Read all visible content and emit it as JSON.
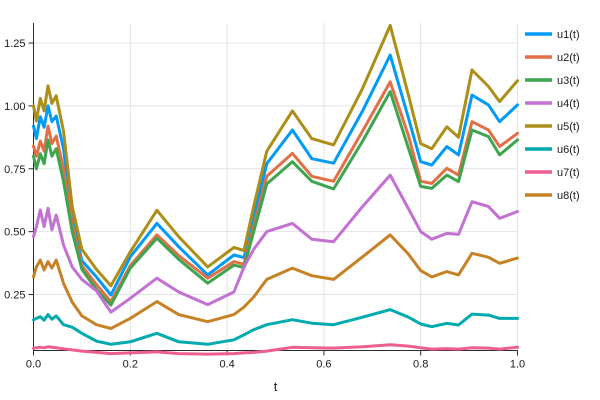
{
  "chart_data": {
    "type": "line",
    "title": "",
    "xlabel": "t",
    "ylabel": "",
    "xlim": [
      0.0,
      1.0
    ],
    "ylim": [
      0.03,
      1.33
    ],
    "grid": true,
    "legend_position": "outer-right-top",
    "x_tick_labels": [
      "0.0",
      "0.2",
      "0.4",
      "0.6",
      "0.8",
      "1.0"
    ],
    "x_tick_values": [
      0.0,
      0.2,
      0.4,
      0.6,
      0.8,
      1.0
    ],
    "y_tick_labels": [
      "0.25",
      "0.50",
      "0.75",
      "1.00",
      "1.25"
    ],
    "y_tick_values": [
      0.25,
      0.5,
      0.75,
      1.0,
      1.25
    ],
    "colors": {
      "grid": "#e3e3e3",
      "axis": "#2a2a2a",
      "text": "#1b1b1b",
      "background": "#ffffff"
    },
    "x": [
      0,
      0.006,
      0.014,
      0.022,
      0.03,
      0.038,
      0.047,
      0.062,
      0.08,
      0.1,
      0.13,
      0.16,
      0.2,
      0.255,
      0.3,
      0.36,
      0.414,
      0.435,
      0.455,
      0.482,
      0.535,
      0.575,
      0.62,
      0.68,
      0.737,
      0.775,
      0.8,
      0.823,
      0.854,
      0.878,
      0.906,
      0.94,
      0.963,
      1.0
    ],
    "series": [
      {
        "name": "u1(t)",
        "color": "#009AF9",
        "values": [
          0.92,
          0.87,
          0.957,
          0.915,
          1.0,
          0.937,
          0.96,
          0.83,
          0.55,
          0.385,
          0.32,
          0.248,
          0.4,
          0.533,
          0.44,
          0.328,
          0.407,
          0.397,
          0.56,
          0.77,
          0.904,
          0.79,
          0.772,
          0.98,
          1.202,
          0.95,
          0.778,
          0.765,
          0.838,
          0.805,
          1.043,
          1.004,
          0.937,
          1.004
        ]
      },
      {
        "name": "u2(t)",
        "color": "#E36F47",
        "values": [
          0.84,
          0.8,
          0.86,
          0.82,
          0.92,
          0.85,
          0.88,
          0.75,
          0.53,
          0.365,
          0.29,
          0.222,
          0.365,
          0.487,
          0.405,
          0.315,
          0.381,
          0.37,
          0.52,
          0.72,
          0.811,
          0.72,
          0.7,
          0.9,
          1.096,
          0.88,
          0.7,
          0.692,
          0.752,
          0.725,
          0.937,
          0.904,
          0.838,
          0.891
        ]
      },
      {
        "name": "u3(t)",
        "color": "#3EA44E",
        "values": [
          0.8,
          0.75,
          0.81,
          0.77,
          0.865,
          0.8,
          0.83,
          0.7,
          0.5,
          0.35,
          0.27,
          0.208,
          0.355,
          0.474,
          0.39,
          0.295,
          0.367,
          0.357,
          0.5,
          0.69,
          0.778,
          0.7,
          0.67,
          0.86,
          1.057,
          0.83,
          0.68,
          0.672,
          0.725,
          0.699,
          0.904,
          0.878,
          0.805,
          0.865
        ]
      },
      {
        "name": "u4(t)",
        "color": "#C371D2",
        "values": [
          0.48,
          0.52,
          0.586,
          0.52,
          0.593,
          0.507,
          0.566,
          0.447,
          0.36,
          0.31,
          0.265,
          0.18,
          0.235,
          0.315,
          0.26,
          0.21,
          0.26,
          0.36,
          0.43,
          0.5,
          0.533,
          0.47,
          0.46,
          0.6,
          0.725,
          0.59,
          0.5,
          0.47,
          0.493,
          0.489,
          0.619,
          0.6,
          0.553,
          0.58
        ]
      },
      {
        "name": "u5(t)",
        "color": "#AC8E18",
        "values": [
          1.0,
          0.94,
          1.03,
          0.98,
          1.08,
          1.01,
          1.04,
          0.9,
          0.6,
          0.43,
          0.35,
          0.285,
          0.42,
          0.585,
          0.48,
          0.36,
          0.437,
          0.425,
          0.6,
          0.82,
          0.98,
          0.87,
          0.845,
          1.07,
          1.32,
          1.04,
          0.85,
          0.83,
          0.917,
          0.875,
          1.143,
          1.077,
          1.017,
          1.1
        ]
      },
      {
        "name": "u6(t)",
        "color": "#00AAAE",
        "values": [
          0.149,
          0.155,
          0.162,
          0.148,
          0.17,
          0.152,
          0.165,
          0.13,
          0.12,
          0.096,
          0.065,
          0.052,
          0.062,
          0.096,
          0.062,
          0.052,
          0.07,
          0.09,
          0.11,
          0.13,
          0.15,
          0.136,
          0.13,
          0.16,
          0.19,
          0.16,
          0.133,
          0.122,
          0.135,
          0.129,
          0.172,
          0.168,
          0.155,
          0.155
        ]
      },
      {
        "name": "u7(t)",
        "color": "#ED5E93",
        "values": [
          0.036,
          0.038,
          0.04,
          0.038,
          0.042,
          0.04,
          0.038,
          0.034,
          0.03,
          0.025,
          0.02,
          0.015,
          0.018,
          0.022,
          0.015,
          0.013,
          0.015,
          0.018,
          0.02,
          0.025,
          0.04,
          0.038,
          0.037,
          0.042,
          0.05,
          0.045,
          0.038,
          0.033,
          0.035,
          0.033,
          0.038,
          0.037,
          0.033,
          0.04
        ]
      },
      {
        "name": "u8(t)",
        "color": "#C68225",
        "values": [
          0.32,
          0.36,
          0.387,
          0.348,
          0.381,
          0.355,
          0.387,
          0.295,
          0.22,
          0.165,
          0.13,
          0.115,
          0.155,
          0.222,
          0.17,
          0.142,
          0.17,
          0.2,
          0.24,
          0.31,
          0.355,
          0.325,
          0.31,
          0.4,
          0.487,
          0.41,
          0.345,
          0.32,
          0.341,
          0.328,
          0.414,
          0.398,
          0.374,
          0.395
        ]
      }
    ]
  }
}
